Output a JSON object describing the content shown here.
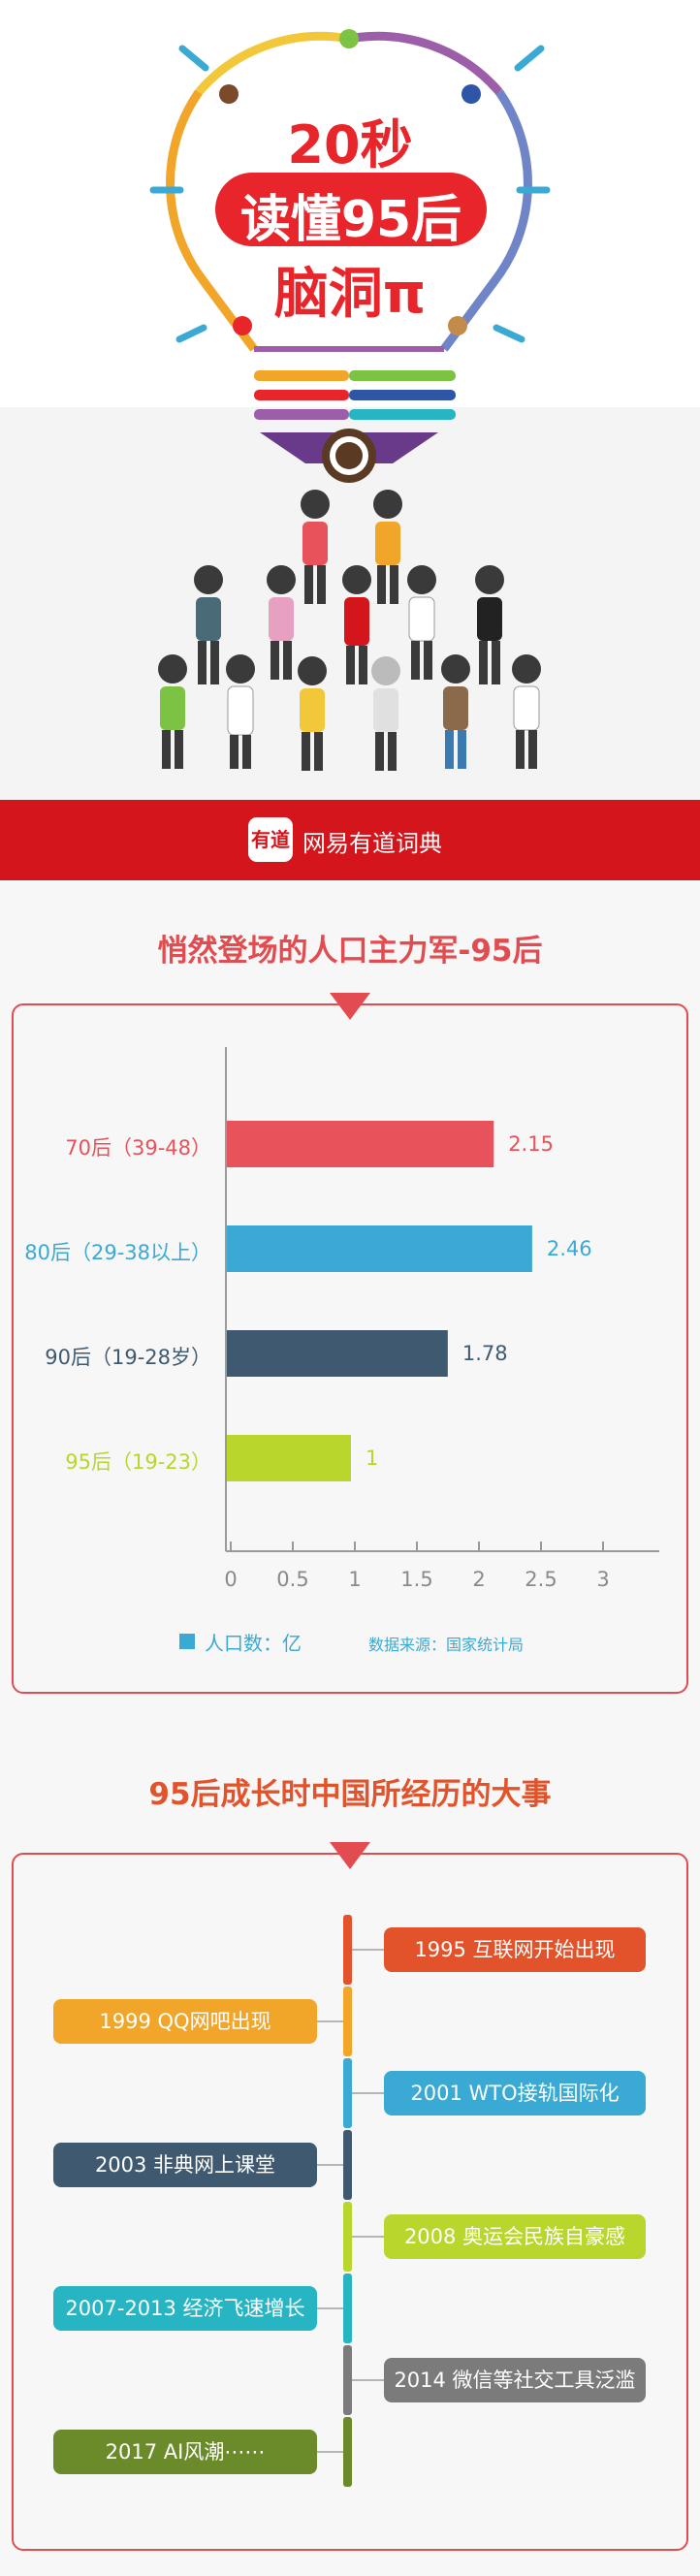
{
  "hero": {
    "line1": "20秒",
    "line2": "读懂95后",
    "line3": "脑洞π"
  },
  "brand": {
    "logo_text": "有道",
    "name": "网易有道词典"
  },
  "section1_title": "悄然登场的人口主力军-95后",
  "section2_title": "95后成长时中国所经历的大事",
  "colors": {
    "red": "#e8525a",
    "blue": "#3aa9d3",
    "navy": "#3f5a70",
    "lime": "#b8d62c"
  },
  "chart_data": {
    "type": "bar",
    "orientation": "horizontal",
    "categories": [
      "70后（39-48）",
      "80后（29-38以上）",
      "90后（19-28岁）",
      "95后（19-23）"
    ],
    "series": [
      {
        "name": "人口数：亿",
        "values": [
          2.15,
          2.46,
          1.78,
          1
        ]
      }
    ],
    "value_labels": [
      "2.15",
      "2.46",
      "1.78",
      "1"
    ],
    "xticks": [
      "0",
      "0.5",
      "1",
      "1.5",
      "2",
      "2.5",
      "3"
    ],
    "xlim": [
      0,
      3.5
    ],
    "bar_colors": [
      "#e8525a",
      "#3aa9d3",
      "#3f5a70",
      "#b8d62c"
    ],
    "legend": "人口数：亿",
    "source": "数据来源：国家统计局"
  },
  "timeline": [
    {
      "text": "1995  互联网开始出现",
      "side": "right",
      "color": "#e2532b"
    },
    {
      "text": "1999  QQ网吧出现",
      "side": "left",
      "color": "#f1a62a"
    },
    {
      "text": "2001  WTO接轨国际化",
      "side": "right",
      "color": "#3aa9d3"
    },
    {
      "text": "2003  非典网上课堂",
      "side": "left",
      "color": "#3f5a70"
    },
    {
      "text": "2008  奥运会民族自豪感",
      "side": "right",
      "color": "#b8d62c"
    },
    {
      "text": "2007-2013  经济飞速增长",
      "side": "left",
      "color": "#27b5c4"
    },
    {
      "text": "2014  微信等社交工具泛滥",
      "side": "right",
      "color": "#7b7b7b"
    },
    {
      "text": "2017  AI风潮⋯⋯",
      "side": "left",
      "color": "#6b8a2a"
    }
  ]
}
